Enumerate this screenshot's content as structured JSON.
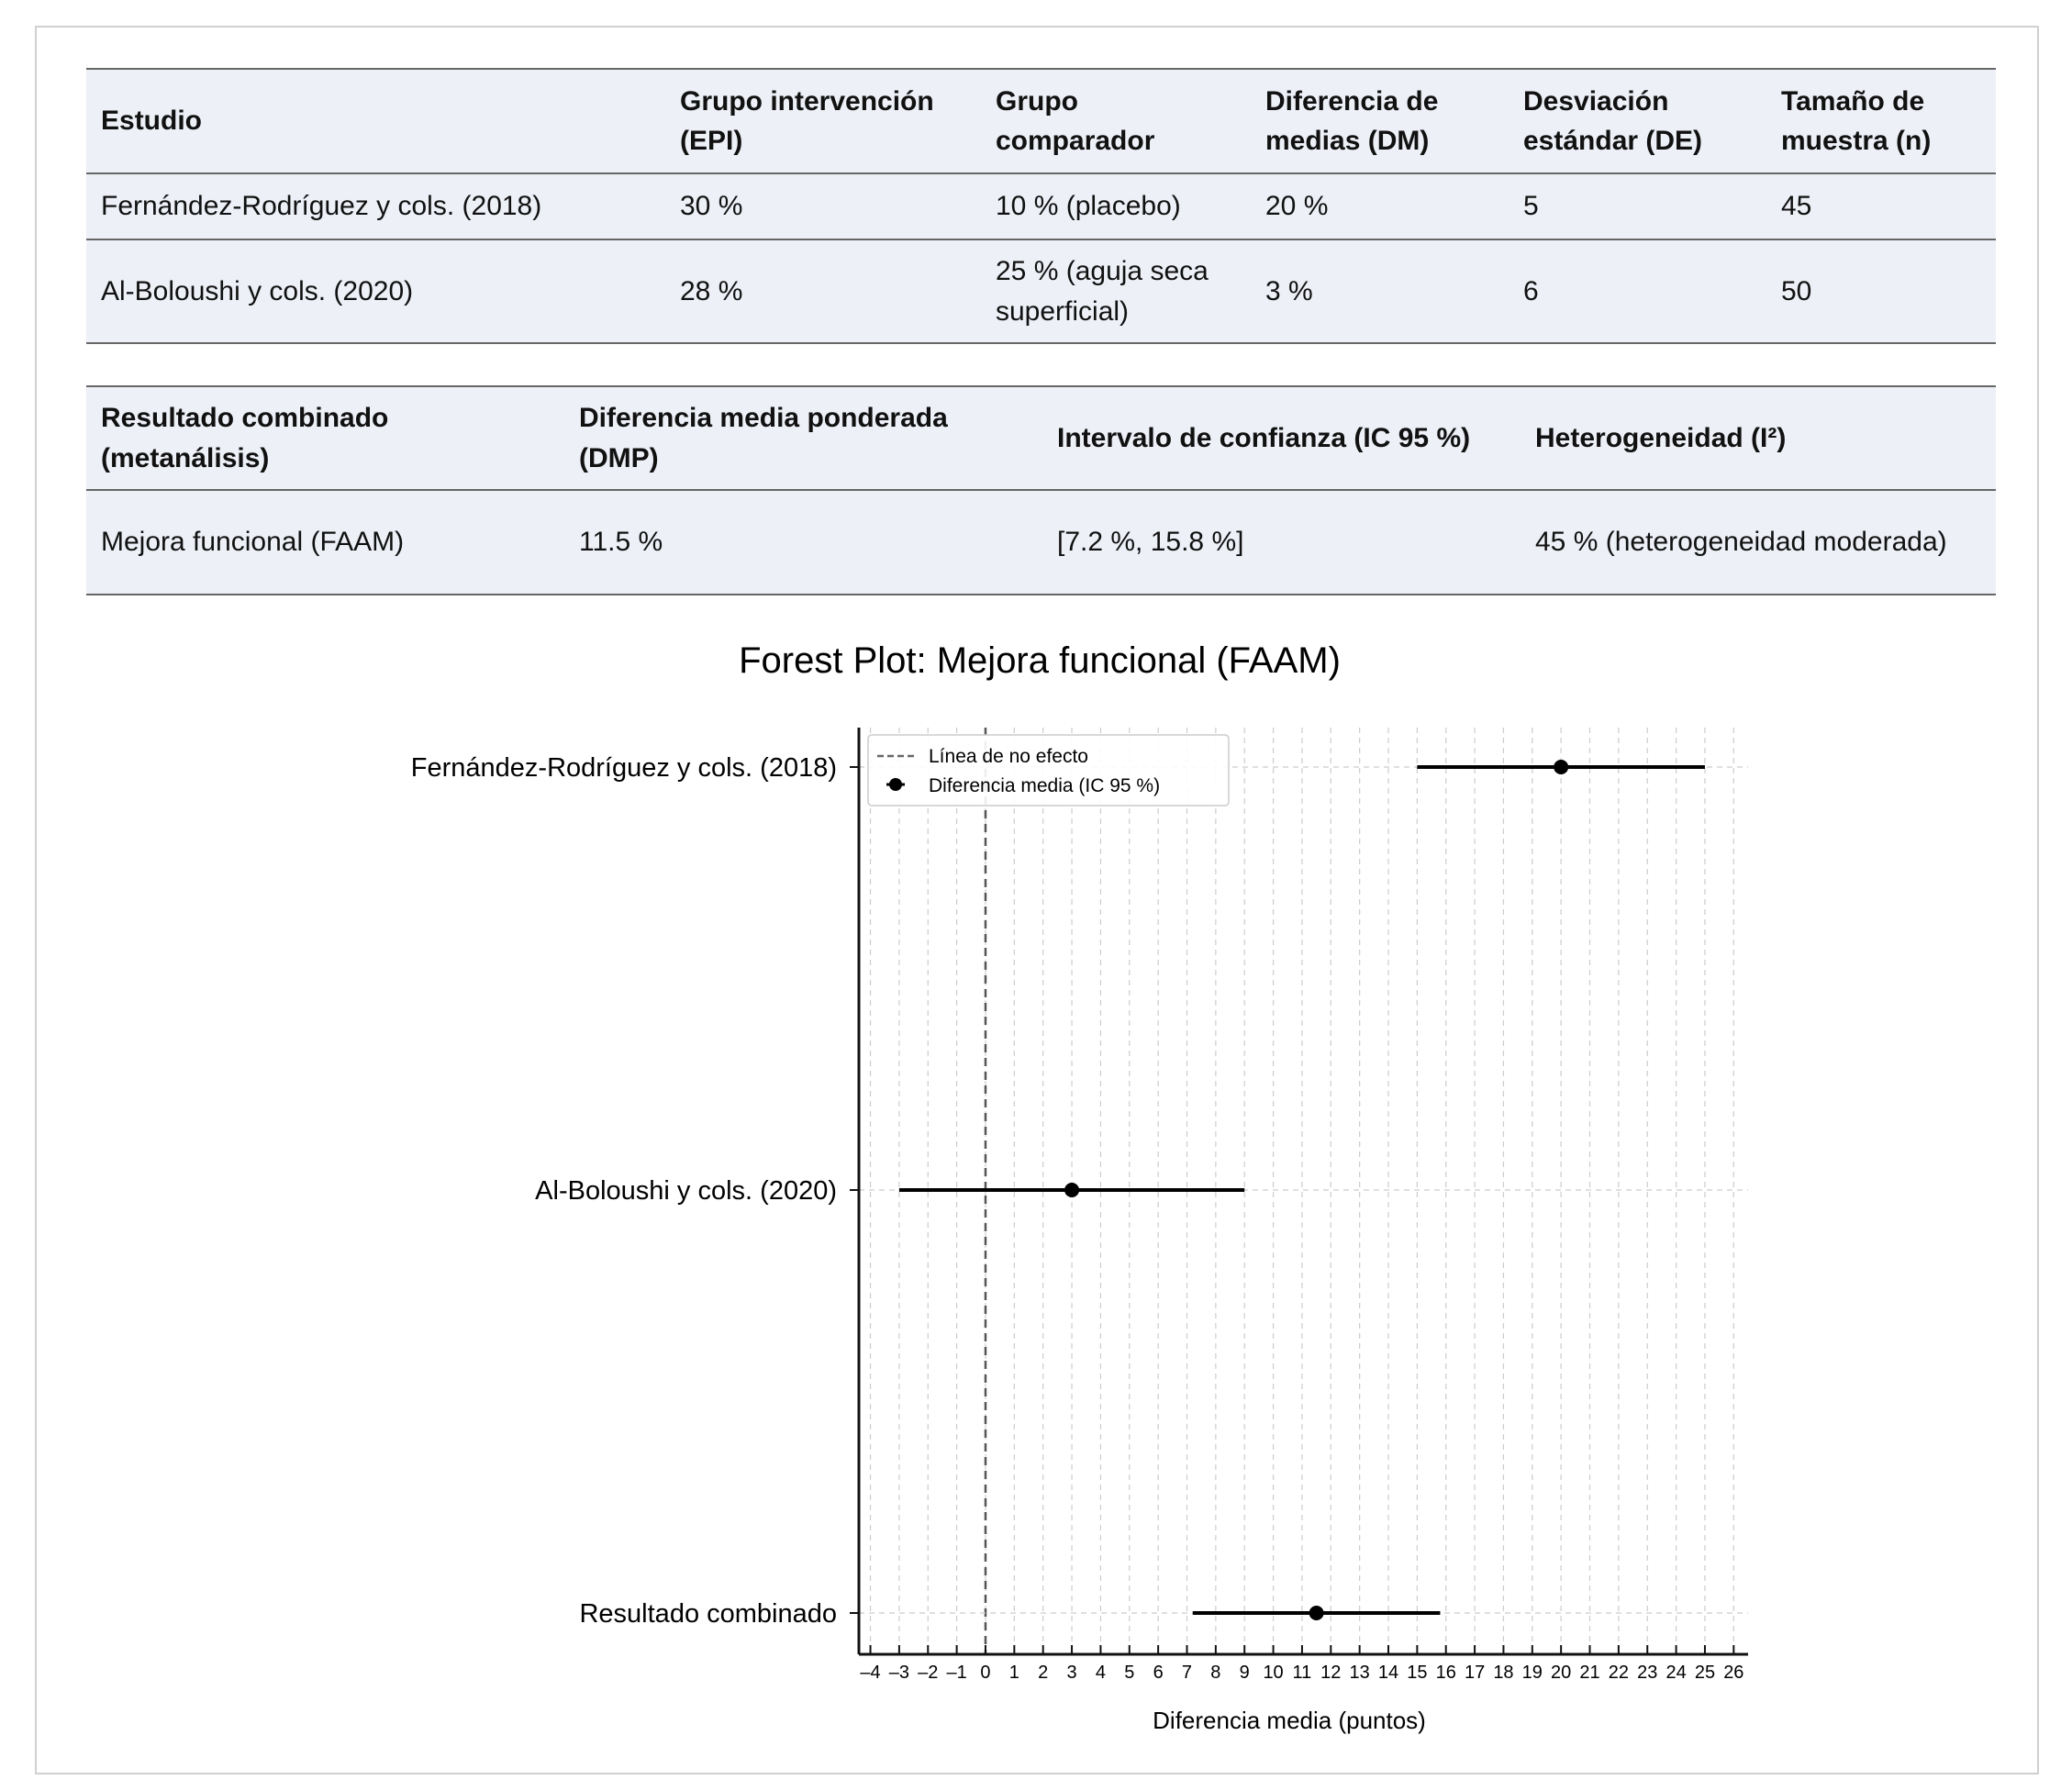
{
  "table_studies": {
    "headers": [
      "Estudio",
      "Grupo intervención (EPI)",
      "Grupo comparador",
      "Diferencia de medias (DM)",
      "Desviación estándar (DE)",
      "Tamaño de muestra (n)"
    ],
    "rows": [
      [
        "Fernández-Rodríguez y cols. (2018)",
        "30 %",
        "10 % (placebo)",
        "20 %",
        "5",
        "45"
      ],
      [
        "Al-Boloushi y cols. (2020)",
        "28 %",
        "25 % (aguja seca superficial)",
        "3 %",
        "6",
        "50"
      ]
    ]
  },
  "table_pooled": {
    "headers": [
      "Resultado combinado (metanálisis)",
      "Diferencia media ponderada (DMP)",
      "Intervalo de confianza (IC 95 %)",
      "Heterogeneidad (I²)"
    ],
    "rows": [
      [
        "Mejora funcional (FAAM)",
        "11.5 %",
        "[7.2 %, 15.8 %]",
        "45 % (heterogeneidad moderada)"
      ]
    ]
  },
  "chart_data": {
    "type": "forest",
    "title": "Forest Plot: Mejora funcional (FAAM)",
    "xlabel": "Diferencia media (puntos)",
    "xlim": [
      -4.4,
      26.5
    ],
    "xticks": [
      -4,
      -3,
      -2,
      -1,
      0,
      1,
      2,
      3,
      4,
      5,
      6,
      7,
      8,
      9,
      10,
      11,
      12,
      13,
      14,
      15,
      16,
      17,
      18,
      19,
      20,
      21,
      22,
      23,
      24,
      25,
      26
    ],
    "grid": true,
    "reference_line": 0,
    "legend": {
      "placement": "top-left",
      "entries": [
        "Línea de no efecto",
        "Diferencia media (IC 95 %)"
      ]
    },
    "rows": [
      {
        "label": "Fernández-Rodríguez y cols. (2018)",
        "mean": 20,
        "lower": 15,
        "upper": 25
      },
      {
        "label": "Al-Boloushi y cols. (2020)",
        "mean": 3,
        "lower": -3,
        "upper": 9
      },
      {
        "label": "Resultado combinado",
        "mean": 11.5,
        "lower": 7.2,
        "upper": 15.8
      }
    ]
  }
}
